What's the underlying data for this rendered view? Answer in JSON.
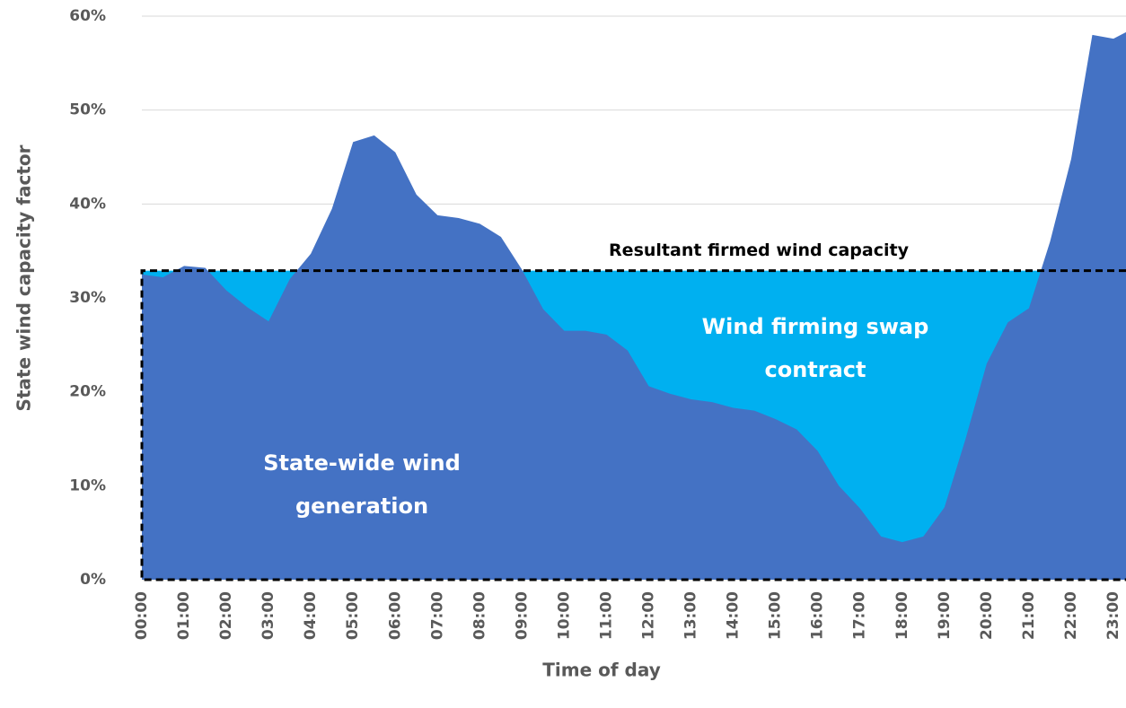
{
  "chart_data": {
    "type": "area",
    "x_label": "Time of day",
    "y_label": "State wind  capacity factor",
    "x": [
      0,
      0.5,
      1,
      1.5,
      2,
      2.5,
      3,
      3.5,
      4,
      4.5,
      5,
      5.5,
      6,
      6.5,
      7,
      7.5,
      8,
      8.5,
      9,
      9.5,
      10,
      10.5,
      11,
      11.5,
      12,
      12.5,
      13,
      13.5,
      14,
      14.5,
      15,
      15.5,
      16,
      16.5,
      17,
      17.5,
      18,
      18.5,
      19,
      19.5,
      20,
      20.5,
      21,
      21.5,
      22,
      22.5,
      23,
      23.3
    ],
    "series": [
      {
        "name": [
          "State-wide wind",
          "generation"
        ],
        "color": "#4472c4",
        "values": [
          32.5,
          32.2,
          33.4,
          33.2,
          30.8,
          29,
          27.5,
          32,
          34.7,
          39.5,
          46.6,
          47.3,
          45.5,
          41,
          38.8,
          38.5,
          37.9,
          36.5,
          33,
          28.8,
          26.5,
          26.5,
          26.1,
          24.4,
          20.6,
          19.8,
          19.2,
          18.9,
          18.3,
          18,
          17.1,
          16,
          13.7,
          10,
          7.6,
          4.6,
          4,
          4.6,
          7.7,
          15,
          23,
          27.4,
          28.9,
          36,
          44.8,
          58,
          57.6,
          58.3
        ]
      }
    ],
    "firmed": {
      "name": "Resultant firmed wind capacity",
      "value": 32.9
    },
    "swap": {
      "name": [
        "Wind firming swap",
        "contract"
      ],
      "color": "#00b0f0"
    },
    "xlim": [
      0,
      23
    ],
    "ylim": [
      0,
      60
    ],
    "yticks": [
      {
        "value": 0,
        "label": "0%"
      },
      {
        "value": 10,
        "label": "10%"
      },
      {
        "value": 20,
        "label": "20%"
      },
      {
        "value": 30,
        "label": "30%"
      },
      {
        "value": 40,
        "label": "40%"
      },
      {
        "value": 50,
        "label": "50%"
      },
      {
        "value": 60,
        "label": "60%"
      }
    ],
    "xticks": [
      {
        "value": 0,
        "label": "00:00"
      },
      {
        "value": 1,
        "label": "01:00"
      },
      {
        "value": 2,
        "label": "02:00"
      },
      {
        "value": 3,
        "label": "03:00"
      },
      {
        "value": 4,
        "label": "04:00"
      },
      {
        "value": 5,
        "label": "05:00"
      },
      {
        "value": 6,
        "label": "06:00"
      },
      {
        "value": 7,
        "label": "07:00"
      },
      {
        "value": 8,
        "label": "08:00"
      },
      {
        "value": 9,
        "label": "09:00"
      },
      {
        "value": 10,
        "label": "10:00"
      },
      {
        "value": 11,
        "label": "11:00"
      },
      {
        "value": 12,
        "label": "12:00"
      },
      {
        "value": 13,
        "label": "13:00"
      },
      {
        "value": 14,
        "label": "14:00"
      },
      {
        "value": 15,
        "label": "15:00"
      },
      {
        "value": 16,
        "label": "16:00"
      },
      {
        "value": 17,
        "label": "17:00"
      },
      {
        "value": 18,
        "label": "18:00"
      },
      {
        "value": 19,
        "label": "19:00"
      },
      {
        "value": 20,
        "label": "20:00"
      },
      {
        "value": 21,
        "label": "21:00"
      },
      {
        "value": 22,
        "label": "22:00"
      },
      {
        "value": 23,
        "label": "23:00"
      }
    ],
    "grid": true
  }
}
